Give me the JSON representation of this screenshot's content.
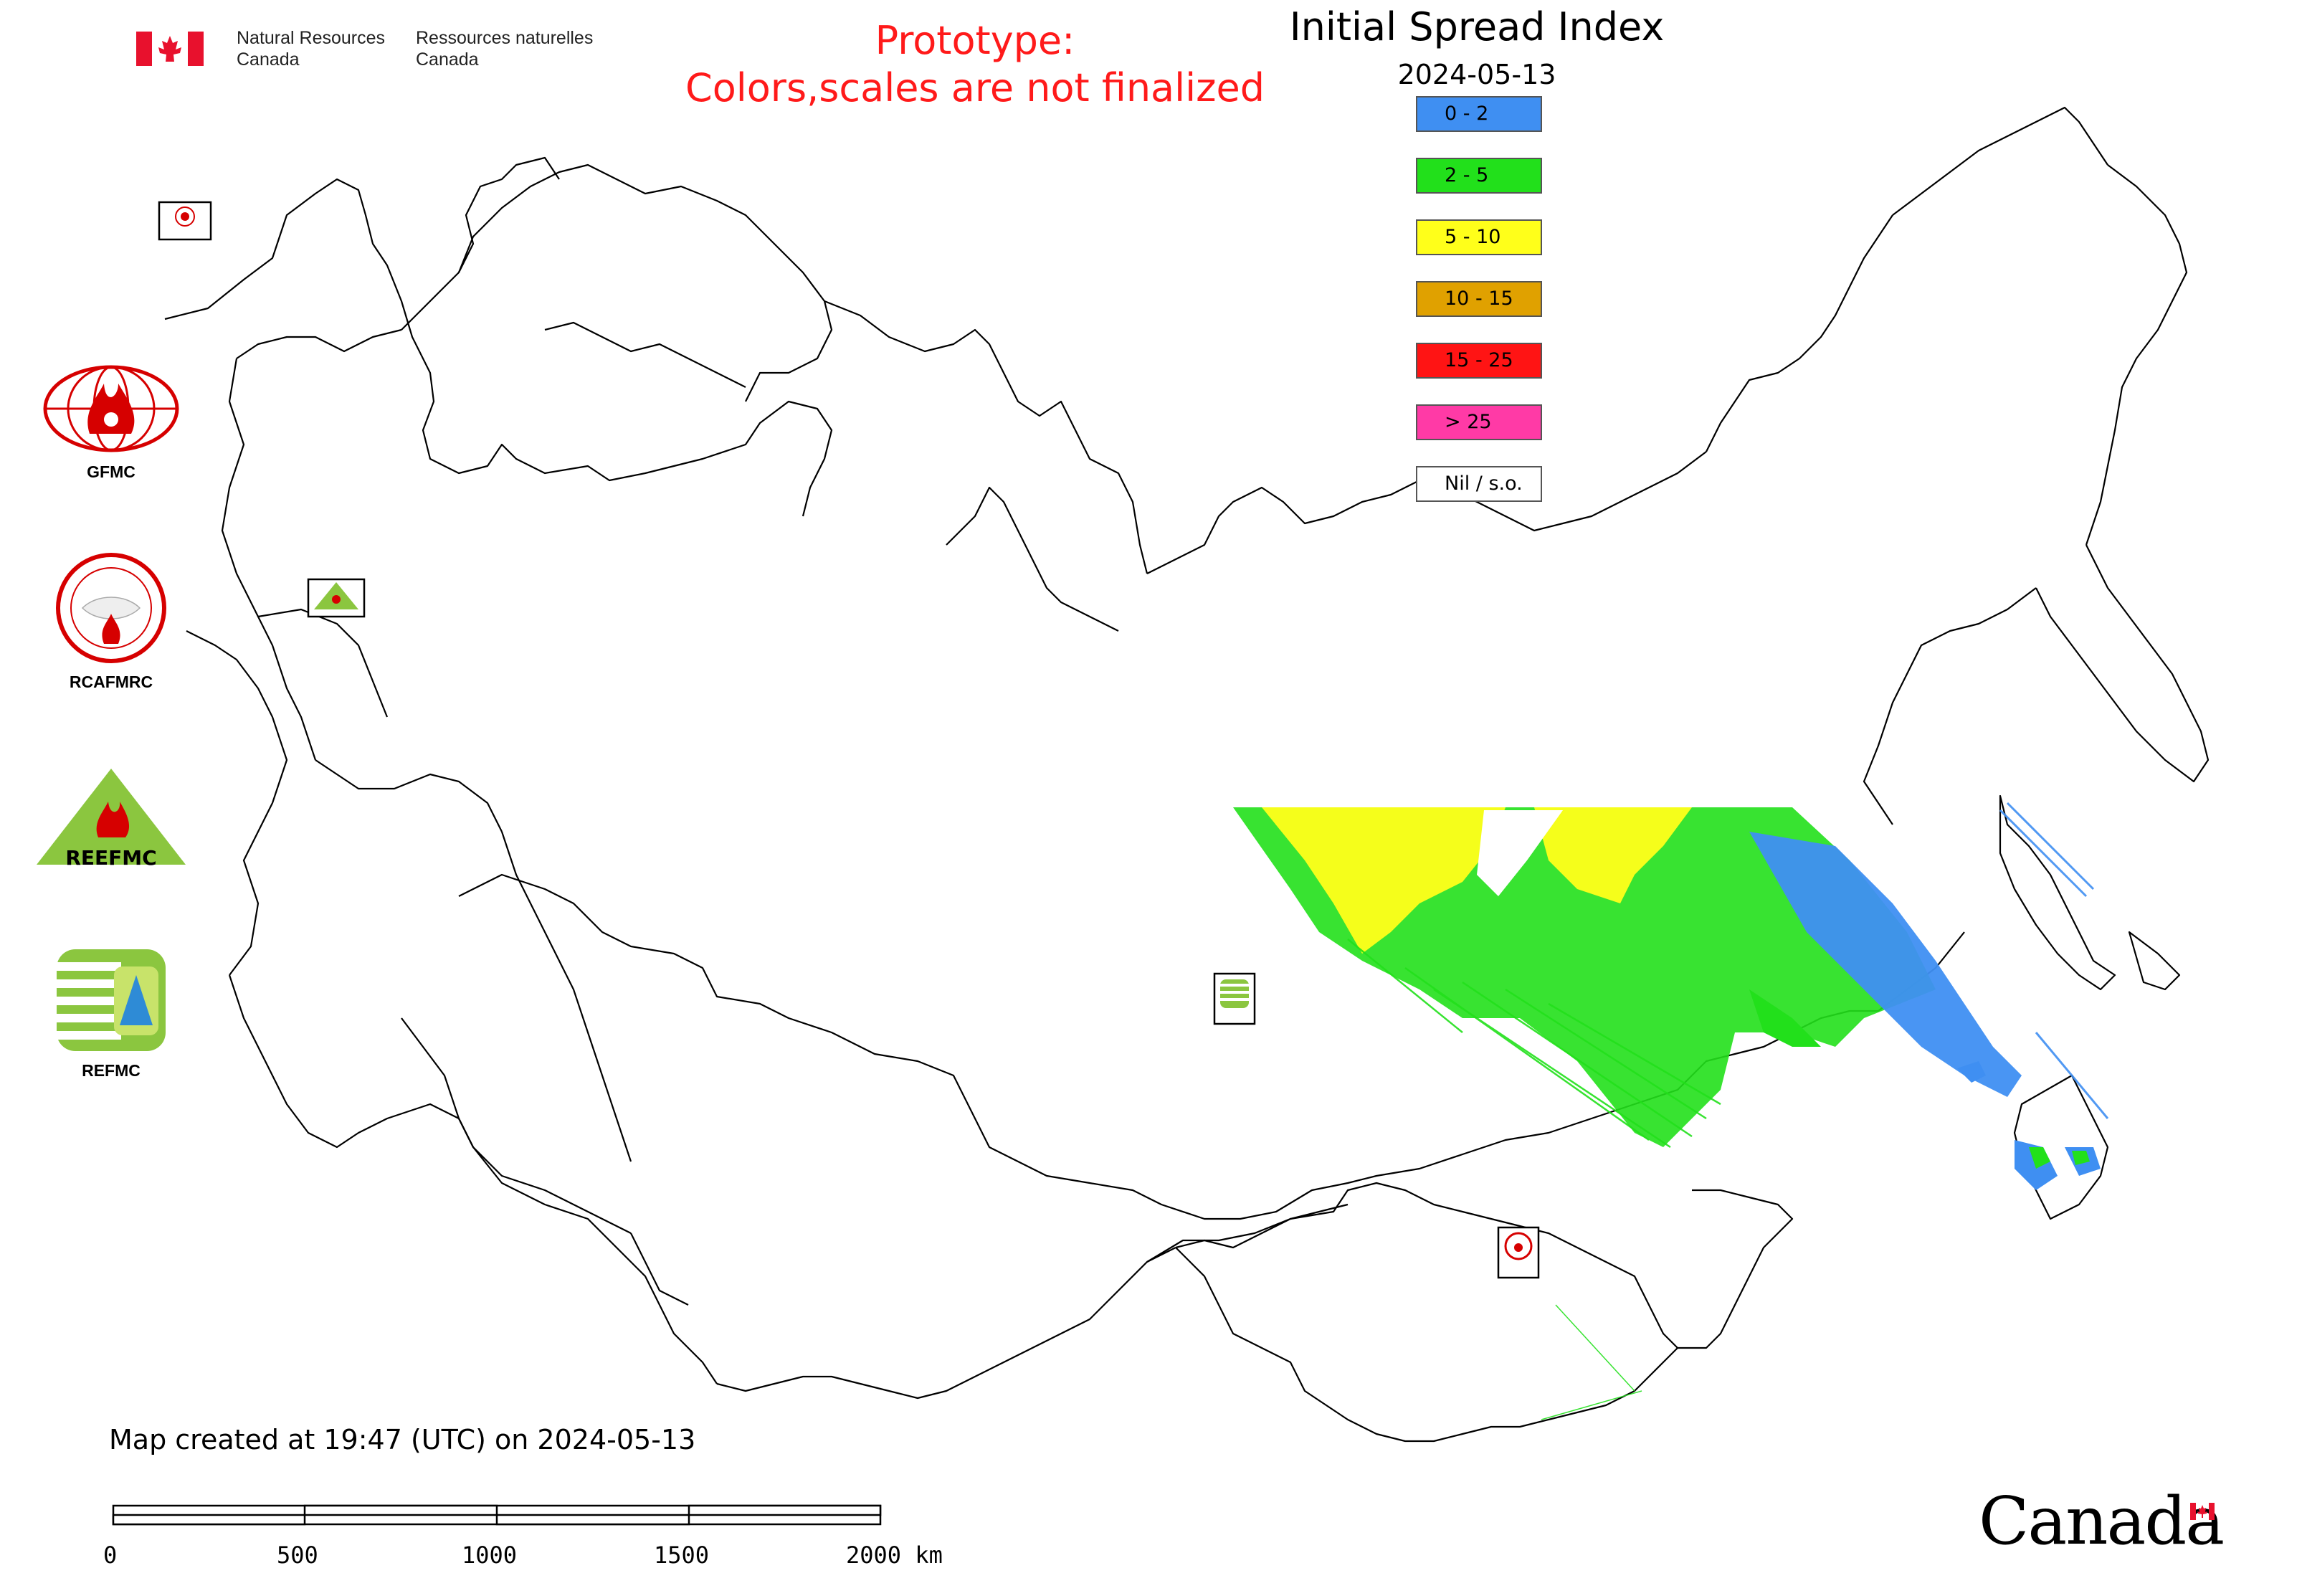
{
  "header": {
    "nrcan_en": "Natural Resources\nCanada",
    "nrcan_fr": "Ressources naturelles\nCanada",
    "prototype_line1": "Prototype:",
    "prototype_line2": "Colors,scales are not finalized"
  },
  "map": {
    "title": "Initial Spread Index",
    "date": "2024-05-13"
  },
  "legend": [
    {
      "label": "0 - 2",
      "color": "#3f8ff2"
    },
    {
      "label": "2 - 5",
      "color": "#22e01b"
    },
    {
      "label": "5 - 10",
      "color": "#ffff1a"
    },
    {
      "label": "10 - 15",
      "color": "#e0a100"
    },
    {
      "label": "15 - 25",
      "color": "#ff1414"
    },
    {
      "label": "> 25",
      "color": "#ff3aa6"
    },
    {
      "label": "Nil / s.o.",
      "color": "#ffffff"
    }
  ],
  "logos": {
    "gfmc": "GFMC",
    "rcafmrc": "RCAFMRC",
    "reefmc": "REEFMC",
    "refmc": "REFMC",
    "reefmc_text": "REEFMC"
  },
  "map_markers": {
    "gfmc_small": "GFMC",
    "reefmc_small": "REEFMC",
    "refmc_small": "REFMC",
    "rcafmrc_small": "RCAFMRC"
  },
  "footer": {
    "created": "Map created at 19:47 (UTC) on 2024-05-13"
  },
  "scale": {
    "labels": [
      "0",
      "500",
      "1000",
      "1500",
      "2000 km"
    ]
  },
  "wordmark": "Canada"
}
